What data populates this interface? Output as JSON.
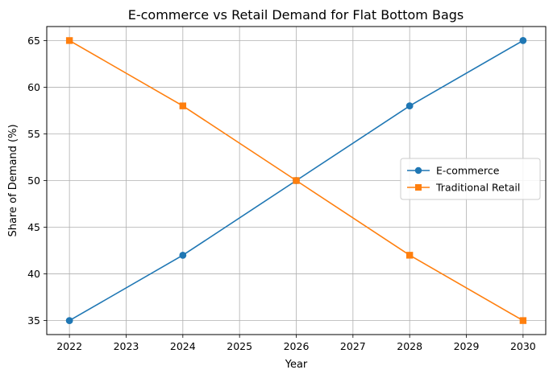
{
  "chart_data": {
    "type": "line",
    "title": "E-commerce vs Retail Demand for Flat Bottom Bags",
    "xlabel": "Year",
    "ylabel": "Share of Demand (%)",
    "x": [
      2022,
      2024,
      2026,
      2028,
      2030
    ],
    "xlim": [
      2021.6,
      2030.4
    ],
    "ylim": [
      33.5,
      66.5
    ],
    "xticks": [
      2022,
      2023,
      2024,
      2025,
      2026,
      2027,
      2028,
      2029,
      2030
    ],
    "yticks": [
      35,
      40,
      45,
      50,
      55,
      60,
      65
    ],
    "grid": true,
    "legend_position": "center-right",
    "series": [
      {
        "name": "E-commerce",
        "values": [
          35,
          42,
          50,
          58,
          65
        ],
        "color": "#1f77b4",
        "marker": "circle"
      },
      {
        "name": "Traditional Retail",
        "values": [
          65,
          58,
          50,
          42,
          35
        ],
        "color": "#ff7f0e",
        "marker": "square"
      }
    ]
  }
}
